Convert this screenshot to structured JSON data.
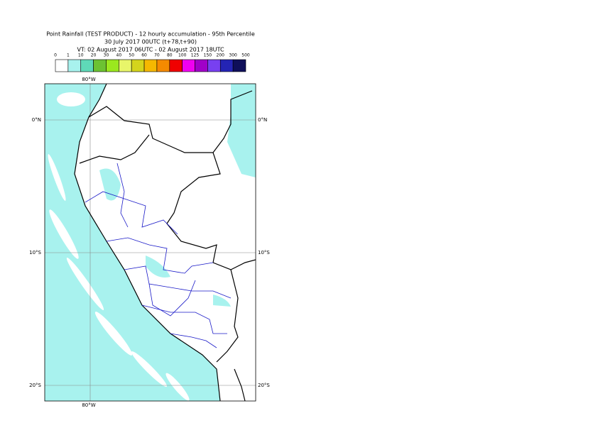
{
  "header": {
    "lines": [
      "Point Rainfall (TEST PRODUCT) - 12 hourly accumulation - 95th Percentile",
      "30 July 2017 00UTC (t+78,t+90)",
      "VT: 02 August 2017 06UTC - 02 August 2017 18UTC"
    ]
  },
  "legend": {
    "thresholds": [
      "0",
      "1",
      "10",
      "20",
      "30",
      "40",
      "50",
      "60",
      "70",
      "80",
      "100",
      "125",
      "150",
      "200",
      "300",
      "500"
    ],
    "colors": [
      "#ffffff",
      "#a8f2ee",
      "#5fd9b8",
      "#6cc232",
      "#9be81e",
      "#e8f56a",
      "#d4d41c",
      "#f5b800",
      "#f58a00",
      "#f00000",
      "#f000f0",
      "#a000c8",
      "#7840f0",
      "#2424b4",
      "#0f0f5a"
    ]
  },
  "grid": {
    "lon_labels": [
      "80°W"
    ],
    "lat_labels": [
      "0°N",
      "10°S",
      "20°S"
    ]
  }
}
